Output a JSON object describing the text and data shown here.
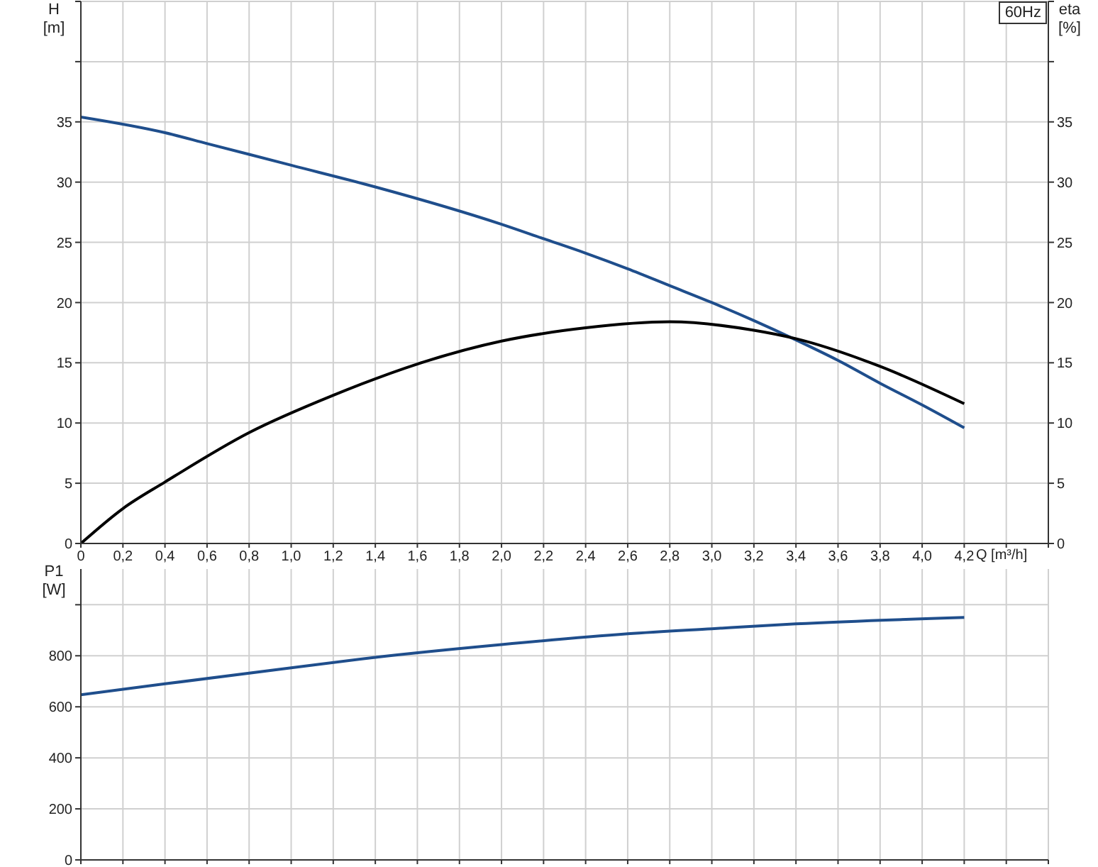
{
  "chart_data": [
    {
      "type": "line",
      "ylabel": "H [m]",
      "y2label": "eta [%]",
      "xlabel": "Q [m³/h]",
      "annotations": [
        "60Hz"
      ],
      "grid": true,
      "marker": "none",
      "line_style": "solid",
      "xlim": [
        0,
        4.6
      ],
      "xticks": [
        0,
        {
          "value": 0.2,
          "label": "0,2"
        },
        {
          "value": 0.4,
          "label": "0,4"
        },
        {
          "value": 0.6,
          "label": "0,6"
        },
        {
          "value": 0.8,
          "label": "0,8"
        },
        {
          "value": 1.0,
          "label": "1,0"
        },
        {
          "value": 1.2,
          "label": "1,2"
        },
        {
          "value": 1.4,
          "label": "1,4"
        },
        {
          "value": 1.6,
          "label": "1,6"
        },
        {
          "value": 1.8,
          "label": "1,8"
        },
        {
          "value": 2.0,
          "label": "2,0"
        },
        {
          "value": 2.2,
          "label": "2,2"
        },
        {
          "value": 2.4,
          "label": "2,4"
        },
        {
          "value": 2.6,
          "label": "2,6"
        },
        {
          "value": 2.8,
          "label": "2,8"
        },
        {
          "value": 3.0,
          "label": "3,0"
        },
        {
          "value": 3.2,
          "label": "3,2"
        },
        {
          "value": 3.4,
          "label": "3,4"
        },
        {
          "value": 3.6,
          "label": "3,6"
        },
        {
          "value": 3.8,
          "label": "3,8"
        },
        {
          "value": 4.0,
          "label": "4,0"
        },
        {
          "value": 4.2,
          "label": "4,2"
        },
        {
          "value": 4.4,
          "label": null
        },
        {
          "value": 4.6,
          "label": null
        }
      ],
      "ylim": [
        0,
        45
      ],
      "yticks": [
        0,
        5,
        10,
        15,
        20,
        25,
        30,
        35,
        {
          "value": 40,
          "label": null
        },
        {
          "value": 45,
          "label": null
        }
      ],
      "y2lim": [
        0,
        45
      ],
      "y2ticks": [
        0,
        5,
        10,
        15,
        20,
        25,
        30,
        35,
        {
          "value": 40,
          "label": null
        },
        {
          "value": 45,
          "label": null
        }
      ],
      "series": [
        {
          "color": "#1f4e8c",
          "x": [
            0,
            0.4,
            0.6,
            1.0,
            1.4,
            2.0,
            2.2,
            2.4,
            2.6,
            2.8,
            3.0,
            3.2,
            3.4,
            3.6,
            3.8,
            4.0,
            4.2
          ],
          "values": [
            35.4,
            34.1,
            33.2,
            31.4,
            29.6,
            26.5,
            25.3,
            24.1,
            22.8,
            21.4,
            20.0,
            18.5,
            16.9,
            15.2,
            13.3,
            11.5,
            9.6
          ]
        },
        {
          "color": "#000000",
          "axis": "y2",
          "x": [
            0,
            0.2,
            0.4,
            0.8,
            1.2,
            1.6,
            2.0,
            2.4,
            2.8,
            3.2,
            3.4,
            3.8,
            4.2
          ],
          "values": [
            0,
            2.9,
            5.1,
            9.2,
            12.3,
            14.9,
            16.8,
            17.9,
            18.4,
            17.7,
            17.0,
            14.7,
            11.6
          ]
        }
      ]
    },
    {
      "type": "line",
      "ylabel": "P1 [W]",
      "grid": true,
      "marker": "none",
      "line_style": "solid",
      "tick_labels": "y",
      "xlim": [
        0,
        4.6
      ],
      "xticks": [
        0,
        0.2,
        0.4,
        0.6,
        0.8,
        1.0,
        1.2,
        1.4,
        1.6,
        1.8,
        2.0,
        2.2,
        2.4,
        2.6,
        2.8,
        3.0,
        3.2,
        3.4,
        3.6,
        3.8,
        4.0,
        4.2,
        4.4,
        4.6
      ],
      "ylim": [
        0,
        1140
      ],
      "yticks": [
        0,
        200,
        400,
        600,
        800,
        {
          "value": 1000,
          "label": null
        }
      ],
      "series": [
        {
          "color": "#1f4e8c",
          "x": [
            0,
            0.4,
            1.0,
            1.4,
            2.0,
            2.6,
            3.0,
            3.4,
            4.2
          ],
          "values": [
            647,
            690,
            753,
            794,
            844,
            886,
            906,
            925,
            950
          ]
        }
      ]
    }
  ]
}
